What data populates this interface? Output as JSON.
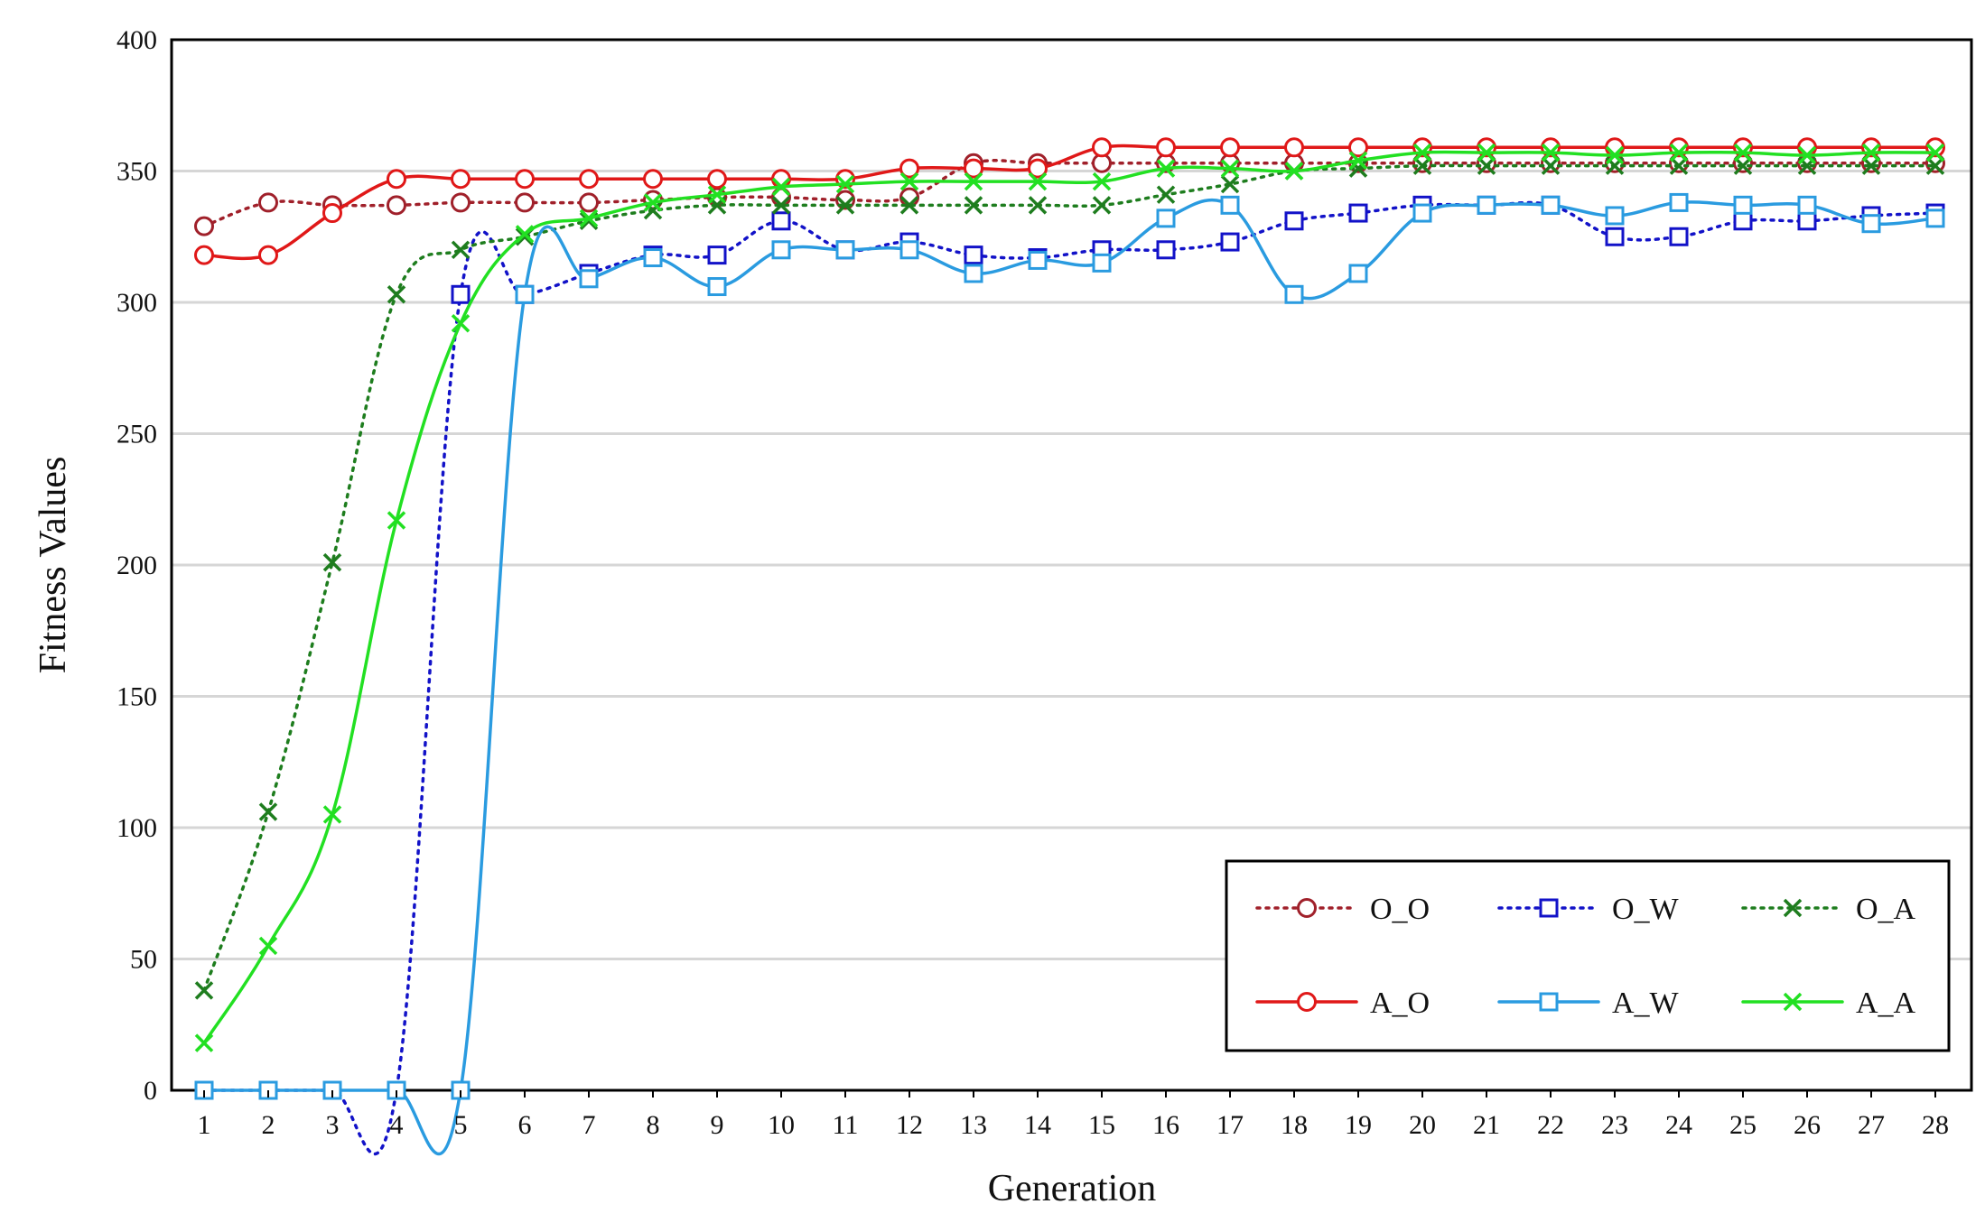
{
  "chart_data": {
    "type": "line",
    "title": "",
    "xlabel": "Generation",
    "ylabel": "Fitness Values",
    "categories": [
      "1",
      "2",
      "3",
      "4",
      "5",
      "6",
      "7",
      "8",
      "9",
      "10",
      "11",
      "12",
      "13",
      "14",
      "15",
      "16",
      "17",
      "18",
      "19",
      "20",
      "21",
      "22",
      "23",
      "24",
      "25",
      "26",
      "27",
      "28"
    ],
    "ylim": [
      0,
      400
    ],
    "yticks": [
      0,
      50,
      100,
      150,
      200,
      250,
      300,
      350,
      400
    ],
    "grid": "horizontal",
    "legend_position": "bottom-right",
    "series": [
      {
        "name": "O_O",
        "color": "#a0202a",
        "line": "dotted",
        "marker": "circle",
        "values": [
          329,
          338,
          337,
          337,
          338,
          338,
          338,
          339,
          340,
          340,
          339,
          340,
          353,
          353,
          353,
          353,
          353,
          353,
          353,
          353,
          353,
          353,
          353,
          353,
          353,
          353,
          353,
          353
        ]
      },
      {
        "name": "O_W",
        "color": "#1212c8",
        "line": "dotted",
        "marker": "square",
        "values": [
          0,
          0,
          0,
          0,
          303,
          303,
          311,
          318,
          318,
          331,
          320,
          323,
          318,
          317,
          320,
          320,
          323,
          331,
          334,
          337,
          337,
          337,
          325,
          325,
          331,
          331,
          333,
          334
        ]
      },
      {
        "name": "O_A",
        "color": "#1e7d1e",
        "line": "dotted",
        "marker": "x",
        "values": [
          38,
          106,
          201,
          303,
          320,
          325,
          331,
          335,
          337,
          337,
          337,
          337,
          337,
          337,
          337,
          341,
          345,
          350,
          351,
          352,
          352,
          352,
          352,
          352,
          352,
          352,
          352,
          352
        ]
      },
      {
        "name": "A_O",
        "color": "#e01818",
        "line": "solid",
        "marker": "circle",
        "values": [
          318,
          318,
          334,
          347,
          347,
          347,
          347,
          347,
          347,
          347,
          347,
          351,
          351,
          351,
          359,
          359,
          359,
          359,
          359,
          359,
          359,
          359,
          359,
          359,
          359,
          359,
          359,
          359
        ]
      },
      {
        "name": "A_W",
        "color": "#2a9be0",
        "line": "solid",
        "marker": "square",
        "values": [
          0,
          0,
          0,
          0,
          0,
          303,
          309,
          317,
          306,
          320,
          320,
          320,
          311,
          316,
          315,
          332,
          337,
          303,
          311,
          334,
          337,
          337,
          333,
          338,
          337,
          337,
          330,
          332
        ]
      },
      {
        "name": "A_A",
        "color": "#22e022",
        "line": "solid",
        "marker": "x",
        "values": [
          18,
          55,
          105,
          217,
          292,
          326,
          332,
          338,
          341,
          344,
          345,
          346,
          346,
          346,
          346,
          351,
          351,
          350,
          354,
          357,
          357,
          357,
          356,
          357,
          357,
          356,
          357,
          357
        ]
      }
    ]
  }
}
